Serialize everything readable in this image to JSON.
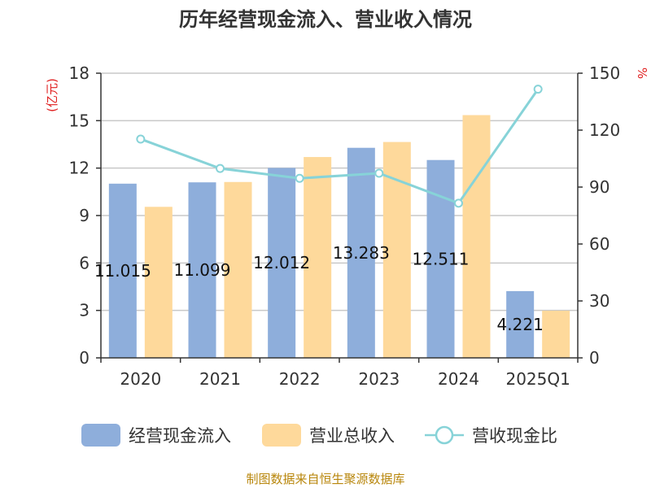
{
  "chart_data": {
    "type": "bar",
    "title": "历年经营现金流入、营业收入情况",
    "categories": [
      "2020",
      "2021",
      "2022",
      "2023",
      "2024",
      "2025Q1"
    ],
    "left_axis": {
      "unit_label": "(亿元)",
      "ylim": [
        0,
        18
      ],
      "ticks": [
        "0",
        "3",
        "6",
        "9",
        "12",
        "15",
        "18"
      ]
    },
    "right_axis": {
      "unit_label": "%",
      "ylim": [
        0,
        150
      ],
      "ticks": [
        "0",
        "30",
        "60",
        "90",
        "120",
        "150"
      ]
    },
    "series": [
      {
        "name": "经营现金流入",
        "kind": "bar",
        "axis": "left",
        "color": "#8eaedb",
        "values": [
          11.015,
          11.099,
          12.012,
          13.283,
          12.511,
          4.221
        ],
        "labels": [
          "11.015",
          "11.099",
          "12.012",
          "13.283",
          "12.511",
          "4.221"
        ]
      },
      {
        "name": "营业总收入",
        "kind": "bar",
        "axis": "left",
        "color": "#fed99b",
        "values": [
          9.55,
          11.12,
          12.7,
          13.65,
          15.35,
          2.98
        ]
      },
      {
        "name": "营收现金比",
        "kind": "line",
        "axis": "right",
        "color": "#87d3d8",
        "values": [
          115.3,
          99.8,
          94.6,
          97.3,
          81.5,
          141.6
        ]
      }
    ],
    "grid": true,
    "legend_position": "bottom"
  },
  "source_text": "制图数据来自恒生聚源数据库"
}
